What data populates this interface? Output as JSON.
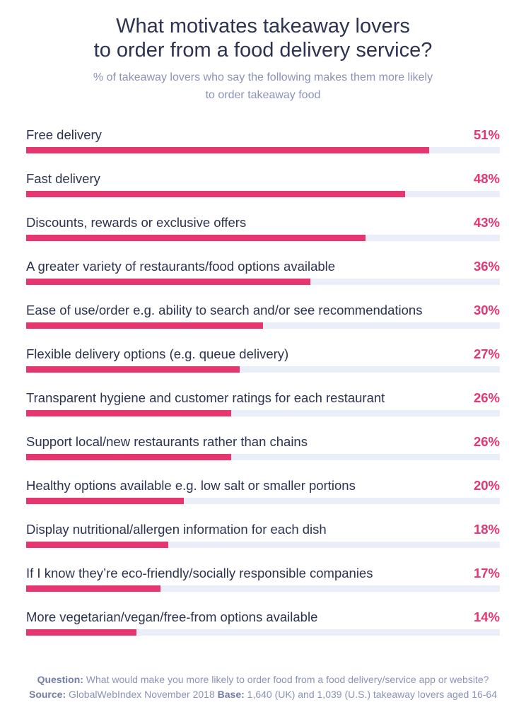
{
  "chart_data": {
    "type": "bar",
    "orientation": "horizontal",
    "title": "What motivates takeaway lovers to order from a food delivery service?",
    "title_lines": [
      "What motivates takeaway lovers",
      "to order from a food delivery service?"
    ],
    "subtitle_lines": [
      "% of takeaway lovers who say the following makes them more likely",
      "to order takeaway food"
    ],
    "xlim": [
      0,
      60
    ],
    "grid": false,
    "colors": {
      "bar": "#e5366f",
      "track": "#e9eef9",
      "title": "#2b3350",
      "subtitle": "#8a93b8"
    },
    "categories": [
      "Free delivery",
      "Fast delivery",
      "Discounts, rewards or exclusive offers",
      "A greater variety of restaurants/food options available",
      "Ease of use/order e.g. ability to search and/or see recommendations",
      "Flexible delivery options (e.g. queue delivery)",
      "Transparent hygiene and customer ratings for each restaurant",
      "Support local/new restaurants rather than chains",
      "Healthy options available e.g. low salt or smaller portions",
      "Display nutritional/allergen information for each dish",
      "If I know they’re eco-friendly/socially responsible companies",
      "More vegetarian/vegan/free-from options available"
    ],
    "values": [
      51,
      48,
      43,
      36,
      30,
      27,
      26,
      26,
      20,
      18,
      17,
      14
    ],
    "value_labels": [
      "51%",
      "48%",
      "43%",
      "36%",
      "30%",
      "27%",
      "26%",
      "26%",
      "20%",
      "18%",
      "17%",
      "14%"
    ]
  },
  "footer": {
    "question_label": "Question:",
    "question_text": " What would make you more likely to order food from a food delivery/service app or website?",
    "source_label": "Source:",
    "source_text": " GlobalWebIndex November 2018 ",
    "base_label": "Base:",
    "base_text": " 1,640 (UK) and 1,039 (U.S.) takeaway lovers aged 16-64"
  }
}
